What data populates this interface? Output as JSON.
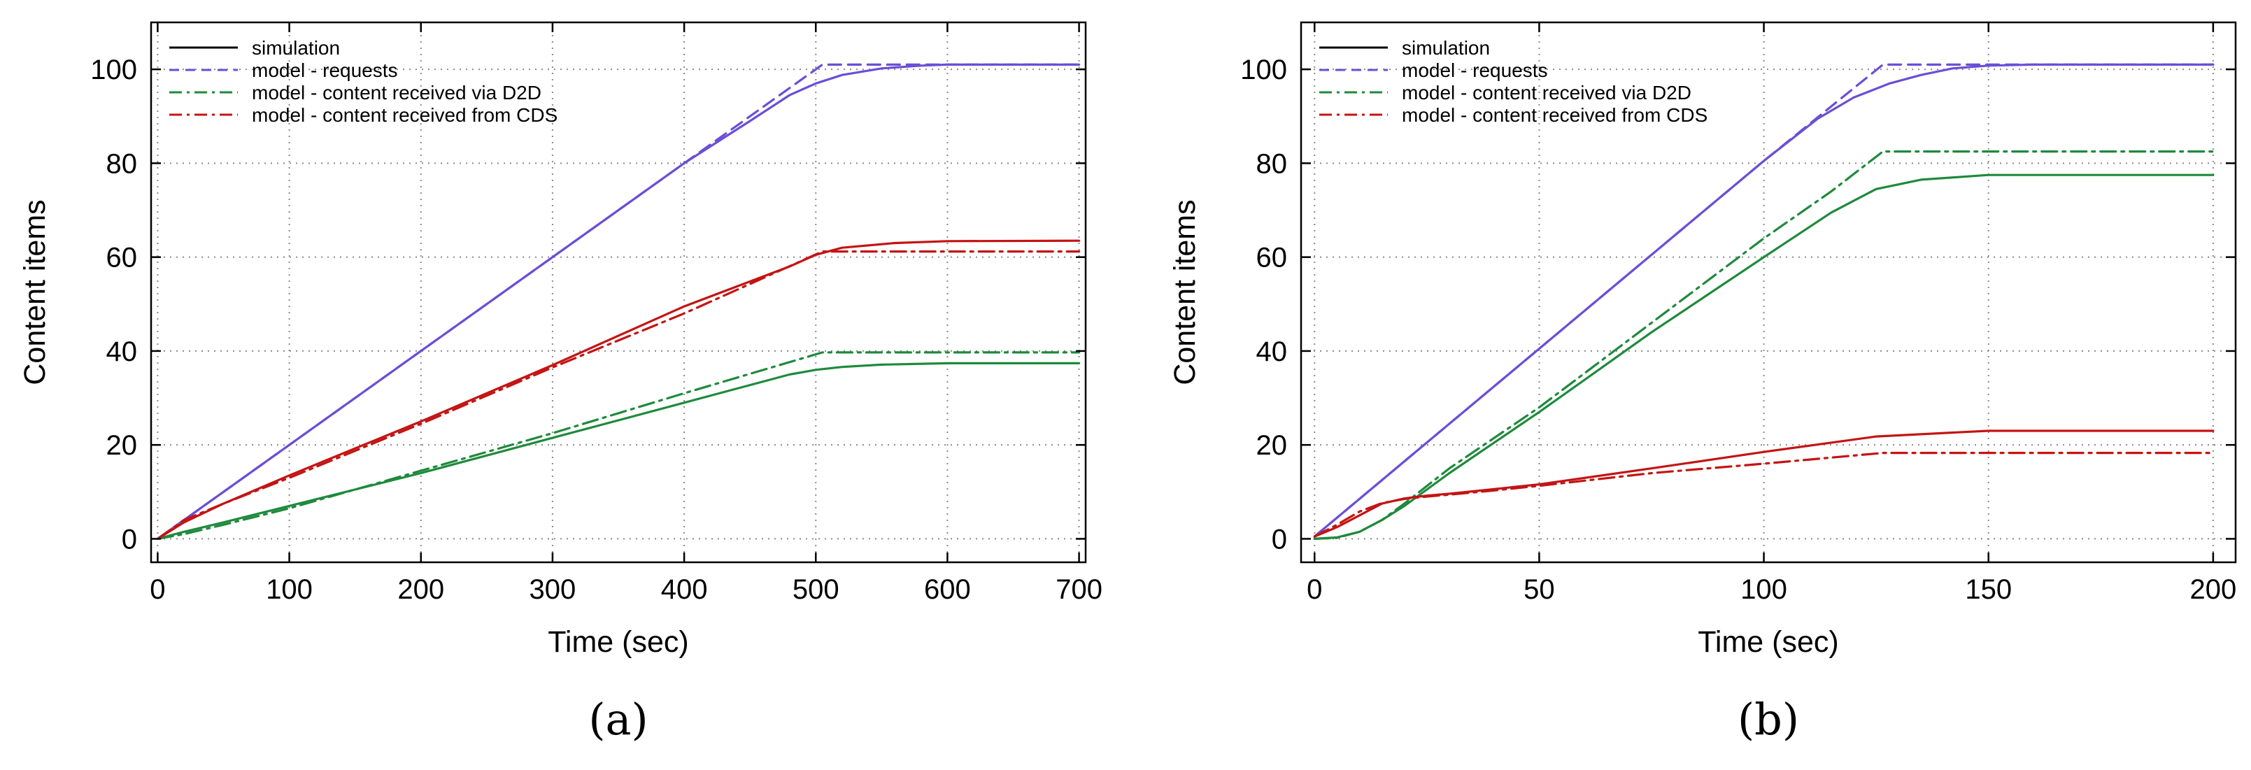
{
  "chart_data": [
    {
      "type": "line",
      "caption": "(a)",
      "xlabel": "Time (sec)",
      "ylabel": "Content items",
      "xlim": [
        -5,
        705
      ],
      "ylim": [
        -5,
        110
      ],
      "xticks": [
        0,
        100,
        200,
        300,
        400,
        500,
        600,
        700
      ],
      "yticks": [
        0,
        20,
        40,
        60,
        80,
        100
      ],
      "xtick_labels": [
        "0",
        "100",
        "200",
        "300",
        "400",
        "500",
        "600",
        "700"
      ],
      "ytick_labels": [
        "0",
        "20",
        "40",
        "60",
        "80",
        "100"
      ],
      "grid": true,
      "legend_position": "top-left",
      "legend": [
        {
          "label": "simulation",
          "color": "#000000",
          "style": "solid"
        },
        {
          "label": "model - requests",
          "color": "#6a4fd6",
          "style": "dashed"
        },
        {
          "label": "model - content received via D2D",
          "color": "#1e8a3c",
          "style": "dashdot"
        },
        {
          "label": "model - content received from CDS",
          "color": "#c41414",
          "style": "dashdot"
        }
      ],
      "series": [
        {
          "name": "simulation - requests",
          "color": "#6a4fd6",
          "style": "solid",
          "x": [
            0,
            100,
            200,
            300,
            400,
            450,
            480,
            500,
            520,
            550,
            580,
            600,
            650,
            700
          ],
          "y": [
            0,
            20,
            40,
            60,
            80,
            89,
            94.5,
            97,
            98.8,
            100.2,
            100.8,
            101,
            101,
            101
          ]
        },
        {
          "name": "model - requests",
          "color": "#6a4fd6",
          "style": "dashed",
          "x": [
            0,
            100,
            200,
            300,
            400,
            505,
            520,
            700
          ],
          "y": [
            0,
            20,
            40,
            60,
            80,
            101,
            101,
            101
          ]
        },
        {
          "name": "simulation - content received via D2D",
          "color": "#1e8a3c",
          "style": "solid",
          "x": [
            0,
            20,
            50,
            100,
            200,
            300,
            400,
            480,
            500,
            520,
            550,
            600,
            700
          ],
          "y": [
            0,
            1.5,
            3.5,
            7,
            14,
            21.5,
            29,
            35,
            36,
            36.6,
            37.1,
            37.4,
            37.4
          ]
        },
        {
          "name": "model - content received via D2D",
          "color": "#1e8a3c",
          "style": "dashdot",
          "x": [
            0,
            20,
            50,
            100,
            200,
            300,
            400,
            505,
            700
          ],
          "y": [
            0,
            1,
            3,
            6.5,
            14.5,
            22.5,
            31,
            39.7,
            39.7
          ]
        },
        {
          "name": "simulation - content received from CDS",
          "color": "#c41414",
          "style": "solid",
          "x": [
            0,
            20,
            50,
            100,
            200,
            300,
            400,
            480,
            500,
            520,
            560,
            600,
            700
          ],
          "y": [
            0,
            3.5,
            7.5,
            13.5,
            25,
            37,
            49.5,
            58,
            60.5,
            62,
            63,
            63.4,
            63.5
          ]
        },
        {
          "name": "model - content received from CDS",
          "color": "#c41414",
          "style": "dashdot",
          "x": [
            0,
            20,
            50,
            100,
            200,
            300,
            400,
            505,
            700
          ],
          "y": [
            0,
            4,
            7.5,
            13,
            24.5,
            36.5,
            48,
            61.2,
            61.2
          ]
        }
      ]
    },
    {
      "type": "line",
      "caption": "(b)",
      "xlabel": "Time (sec)",
      "ylabel": "Content items",
      "xlim": [
        -3,
        205
      ],
      "ylim": [
        -5,
        110
      ],
      "xticks": [
        0,
        50,
        100,
        150,
        200
      ],
      "yticks": [
        0,
        20,
        40,
        60,
        80,
        100
      ],
      "xtick_labels": [
        "0",
        "50",
        "100",
        "150",
        "200"
      ],
      "ytick_labels": [
        "0",
        "20",
        "40",
        "60",
        "80",
        "100"
      ],
      "grid": true,
      "legend_position": "top-left",
      "legend": [
        {
          "label": "simulation",
          "color": "#000000",
          "style": "solid"
        },
        {
          "label": "model - requests",
          "color": "#6a4fd6",
          "style": "dashed"
        },
        {
          "label": "model - content received via D2D",
          "color": "#1e8a3c",
          "style": "dashdot"
        },
        {
          "label": "model - content received from CDS",
          "color": "#c41414",
          "style": "dashdot"
        }
      ],
      "series": [
        {
          "name": "simulation - requests",
          "color": "#6a4fd6",
          "style": "solid",
          "x": [
            0,
            25,
            50,
            75,
            100,
            112,
            120,
            128,
            135,
            142,
            150,
            160,
            200
          ],
          "y": [
            0.5,
            20.5,
            40.5,
            60.5,
            80.5,
            89.5,
            94,
            97,
            98.8,
            100.2,
            100.8,
            101,
            101
          ]
        },
        {
          "name": "model - requests",
          "color": "#6a4fd6",
          "style": "dashed",
          "x": [
            0,
            25,
            50,
            75,
            100,
            126.5,
            135,
            200
          ],
          "y": [
            0.5,
            20.5,
            40.5,
            60.5,
            80.5,
            101,
            101,
            101
          ]
        },
        {
          "name": "simulation - content received via D2D",
          "color": "#1e8a3c",
          "style": "solid",
          "x": [
            0,
            5,
            10,
            15,
            20,
            30,
            40,
            50,
            75,
            100,
            115,
            125,
            135,
            150,
            200
          ],
          "y": [
            0,
            0.3,
            1.5,
            4,
            7,
            14,
            20.5,
            27,
            44,
            60,
            69.5,
            74.5,
            76.5,
            77.5,
            77.5
          ]
        },
        {
          "name": "model - content received via D2D",
          "color": "#1e8a3c",
          "style": "dashdot",
          "x": [
            0,
            5,
            10,
            15,
            20,
            30,
            40,
            50,
            75,
            100,
            115,
            126.5,
            200
          ],
          "y": [
            0,
            0.2,
            1.5,
            4,
            7.5,
            15,
            21.5,
            28,
            46,
            64,
            74,
            82.5,
            82.5
          ]
        },
        {
          "name": "simulation - content received from CDS",
          "color": "#c41414",
          "style": "solid",
          "x": [
            0,
            5,
            10,
            15,
            20,
            25,
            30,
            40,
            50,
            75,
            100,
            125,
            150,
            200
          ],
          "y": [
            0.5,
            2.5,
            5,
            7.5,
            8.6,
            9.2,
            9.6,
            10.6,
            11.6,
            15,
            18.5,
            21.8,
            23,
            23
          ]
        },
        {
          "name": "model - content received from CDS",
          "color": "#c41414",
          "style": "dashdot",
          "x": [
            0,
            5,
            10,
            15,
            20,
            25,
            30,
            40,
            50,
            75,
            100,
            126.5,
            200
          ],
          "y": [
            0.5,
            3,
            5.8,
            7.6,
            8.5,
            9,
            9.4,
            10.3,
            11.3,
            14,
            16,
            18.3,
            18.3
          ]
        }
      ]
    }
  ]
}
